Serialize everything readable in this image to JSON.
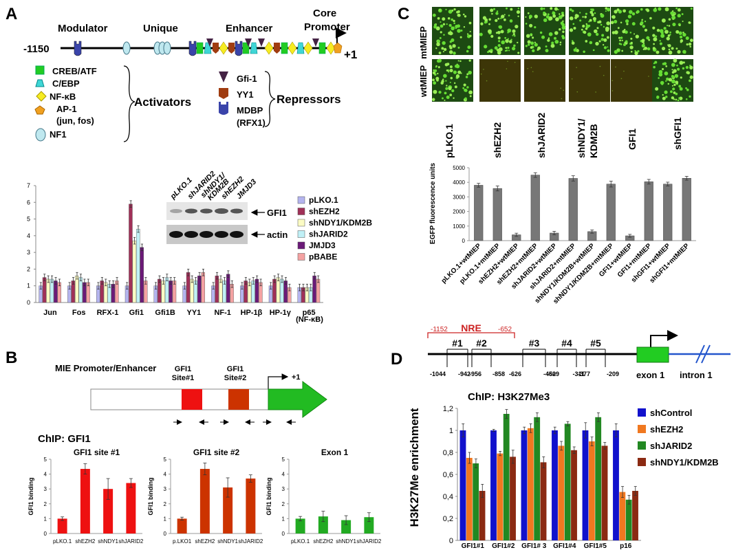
{
  "panelA": {
    "letter": "A",
    "region_labels": [
      "Modulator",
      "Unique",
      "Enhancer",
      "Core",
      "Promoter"
    ],
    "pos_start": "-1150",
    "pos_end": "+1",
    "activators_title": "Activators",
    "activators": [
      "CREB/ATF",
      "C/EBP",
      "NF-κB",
      "AP-1",
      "(jun, fos)",
      "NF1"
    ],
    "repressors_title": "Repressors",
    "repressors": [
      "Gfi-1",
      "YY1",
      "MDBP",
      "(RFX1)"
    ],
    "blot_lanes": [
      "pLKO.1",
      "shJARID2",
      "shNDY1/",
      "KDM2B",
      "shEZH2",
      "JMJD3"
    ],
    "blot_bands": [
      "GFI1",
      "actin"
    ]
  },
  "chartA": {
    "type": "bar",
    "categories": [
      "Jun",
      "Fos",
      "RFX-1",
      "Gfi1",
      "Gfi1B",
      "YY1",
      "NF-1",
      "HP-1β",
      "HP-1γ",
      "p65"
    ],
    "category_sublabel": "(NF-κB)",
    "ylim": [
      0,
      7
    ],
    "yticks": [
      "0",
      "1",
      "2",
      "3",
      "4",
      "5",
      "6",
      "7"
    ],
    "legend_position": "top-right",
    "series": [
      {
        "name": "pLKO.1",
        "color": "#b4b4ee",
        "values": [
          1.0,
          1.0,
          1.0,
          1.0,
          1.0,
          1.0,
          1.0,
          1.0,
          1.0,
          0.9
        ]
      },
      {
        "name": "shEZH2",
        "color": "#a03058",
        "values": [
          1.5,
          1.3,
          1.3,
          5.9,
          1.4,
          1.8,
          1.6,
          1.3,
          1.4,
          0.9
        ]
      },
      {
        "name": "shNDY1/KDM2B",
        "color": "#fbfbc4",
        "values": [
          1.4,
          1.6,
          1.2,
          3.7,
          1.3,
          1.4,
          1.4,
          1.2,
          1.5,
          0.9
        ]
      },
      {
        "name": "shJARID2",
        "color": "#c0f0f6",
        "values": [
          1.4,
          1.5,
          1.1,
          4.4,
          1.5,
          1.3,
          1.3,
          1.3,
          1.4,
          0.9
        ]
      },
      {
        "name": "JMJD3",
        "color": "#6b1a78",
        "values": [
          1.3,
          1.2,
          1.1,
          3.3,
          1.3,
          1.6,
          1.7,
          1.4,
          1.3,
          1.6
        ]
      },
      {
        "name": "pBABE",
        "color": "#f4a2a2",
        "values": [
          1.2,
          1.2,
          1.3,
          1.3,
          1.3,
          1.8,
          1.1,
          1.2,
          0.9,
          1.4
        ]
      }
    ],
    "errors": 0.2
  },
  "panelB": {
    "letter": "B",
    "promoter_label": "MIE  Promoter/Enhancer",
    "site1_label": [
      "GFI1",
      "Site#1"
    ],
    "site2_label": [
      "GFI1",
      "Site#2"
    ],
    "tss_label": "+1",
    "chip_title": "ChIP: GFI1"
  },
  "chartB": [
    {
      "type": "bar",
      "title": "GFI1 site #1",
      "ylabel": "GFI1 binding",
      "color": "#ee1111",
      "ylim": [
        0,
        5
      ],
      "yticks": [
        "0",
        "1",
        "2",
        "3",
        "4",
        "5"
      ],
      "categories": [
        "pLKO.1",
        "shEZH2",
        "shNDY1",
        "shJARID2"
      ],
      "values": [
        1.0,
        4.35,
        3.0,
        3.4
      ],
      "errors": [
        0.12,
        0.35,
        0.7,
        0.3
      ]
    },
    {
      "type": "bar",
      "title": "GFI1 site #2",
      "ylabel": "GFI1 binding",
      "color": "#cc3300",
      "ylim": [
        0,
        5
      ],
      "yticks": [
        "0",
        "1",
        "2",
        "3",
        "4",
        "5"
      ],
      "categories": [
        "p.LKO1",
        "shEZH2",
        "shNDY1",
        "shJARID2"
      ],
      "values": [
        1.0,
        4.35,
        3.1,
        3.7
      ],
      "errors": [
        0.1,
        0.4,
        0.65,
        0.25
      ]
    },
    {
      "type": "bar",
      "title": "Exon 1",
      "ylabel": "GFI1 binding",
      "color": "#22aa22",
      "ylim": [
        0,
        5
      ],
      "yticks": [
        "0",
        "1",
        "2",
        "3",
        "4",
        "5"
      ],
      "categories": [
        "pLKO.1",
        "shEZH2",
        "shNDY1",
        "shJARID2"
      ],
      "values": [
        1.0,
        1.15,
        0.9,
        1.1
      ],
      "errors": [
        0.15,
        0.35,
        0.3,
        0.3
      ]
    }
  ],
  "panelC": {
    "letter": "C",
    "row_labels": [
      "mtMIEP",
      "wtMIEP"
    ],
    "columns": [
      "pLKO.1",
      "shEZH2",
      "shJARID2",
      "shNDY1/",
      "KDM2B",
      "GFI1",
      "shGFI1"
    ],
    "wt_row_bright": [
      true,
      false,
      false,
      false,
      false,
      true
    ]
  },
  "chartC": {
    "type": "bar",
    "ylabel": "EGFP fluorescence units",
    "color": "#777777",
    "ylim": [
      0,
      5000
    ],
    "yticks": [
      "0",
      "1000",
      "2000",
      "3000",
      "4000",
      "5000"
    ],
    "categories": [
      "pLKO.1+wtMIEP",
      "pLKO.1+mtMIEP",
      "shEZH2+wtMIEP",
      "shEZH2+mtMIEP",
      "shJARID2+wtMIEP",
      "shJARID2+mtMIEP",
      "shNDY1/KDM2B+wtMIEP",
      "shNDY1/KDM2B+mtMIEP",
      "GFI1+wtMIEP",
      "GFI1+mtMIEP",
      "shGFI1+wtMIEP",
      "shGFI1+mtMIEP"
    ],
    "values": [
      3800,
      3580,
      400,
      4500,
      520,
      4270,
      620,
      3880,
      330,
      4040,
      3880,
      4280
    ],
    "errors": [
      130,
      170,
      110,
      160,
      120,
      180,
      110,
      200,
      100,
      160,
      130,
      130
    ]
  },
  "panelD": {
    "letter": "D",
    "nre_label": "NRE",
    "nre_start": "-1152",
    "nre_end": "-652",
    "amplicons": [
      "#1",
      "#2",
      "#3",
      "#4",
      "#5"
    ],
    "positions": [
      "-1044",
      "-956",
      "-942",
      "-858",
      "-626",
      "-529",
      "-460",
      "-377",
      "-311",
      "-209"
    ],
    "exon_label": "exon 1",
    "intron_label": "intron 1"
  },
  "chartD": {
    "type": "bar",
    "title": "ChIP: H3K27Me3",
    "ylabel": "H3K27Me enrichment",
    "ylim": [
      0,
      1.2
    ],
    "yticks": [
      "0",
      "0,2",
      "0,4",
      "0,6",
      "0,8",
      "1",
      "1,2"
    ],
    "categories": [
      "GFI1#1",
      "GFI1#2",
      "GFI1# 3",
      "GFI1#4",
      "GFI1#5",
      "p16"
    ],
    "legend_position": "right",
    "series": [
      {
        "name": "shControl",
        "color": "#1111cc",
        "values": [
          1.0,
          1.0,
          1.0,
          1.0,
          1.0,
          1.0
        ],
        "errors": [
          0.06,
          0.01,
          0.03,
          0.03,
          0.07,
          0.06
        ]
      },
      {
        "name": "shEZH2",
        "color": "#f07820",
        "values": [
          0.75,
          0.79,
          1.02,
          0.86,
          0.9,
          0.44
        ],
        "errors": [
          0.05,
          0.02,
          0.04,
          0.04,
          0.04,
          0.05
        ]
      },
      {
        "name": "shJARID2",
        "color": "#228822",
        "values": [
          0.7,
          1.15,
          1.12,
          1.06,
          1.12,
          0.37
        ],
        "errors": [
          0.04,
          0.04,
          0.04,
          0.02,
          0.04,
          0.04
        ]
      },
      {
        "name": "shNDY1/KDM2B",
        "color": "#8b2a12",
        "values": [
          0.45,
          0.76,
          0.71,
          0.82,
          0.86,
          0.45
        ],
        "errors": [
          0.06,
          0.06,
          0.05,
          0.03,
          0.03,
          0.04
        ]
      }
    ]
  }
}
